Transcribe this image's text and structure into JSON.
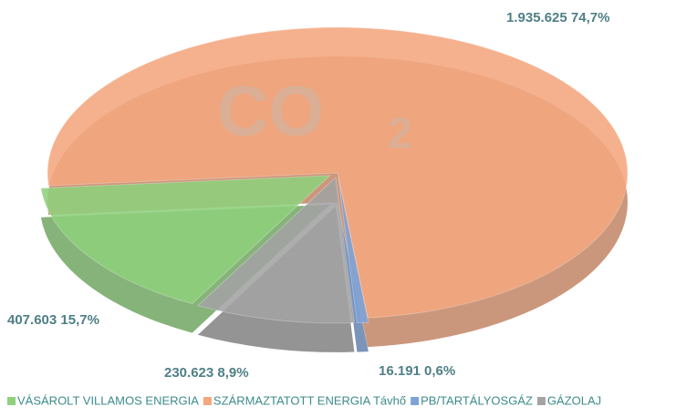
{
  "chart_data": {
    "type": "pie",
    "watermark": [
      "CO",
      "2"
    ],
    "categories": [
      "VÁSÁROLT VILLAMOS ENERGIA",
      "SZÁRMAZTATOTT ENERGIA Távhő",
      "PB/TARTÁLYOSGÁZ",
      "GÁZOLAJ"
    ],
    "values": [
      407603,
      1935625,
      16191,
      230623
    ],
    "value_labels": [
      "407.603 15,7%",
      "1.935.625 74,7%",
      "16.191 0,6%",
      "230.623 8,9%"
    ],
    "colors": [
      "#8fd07c",
      "#f4a77f",
      "#7ea3d9",
      "#a3a3a3"
    ]
  }
}
